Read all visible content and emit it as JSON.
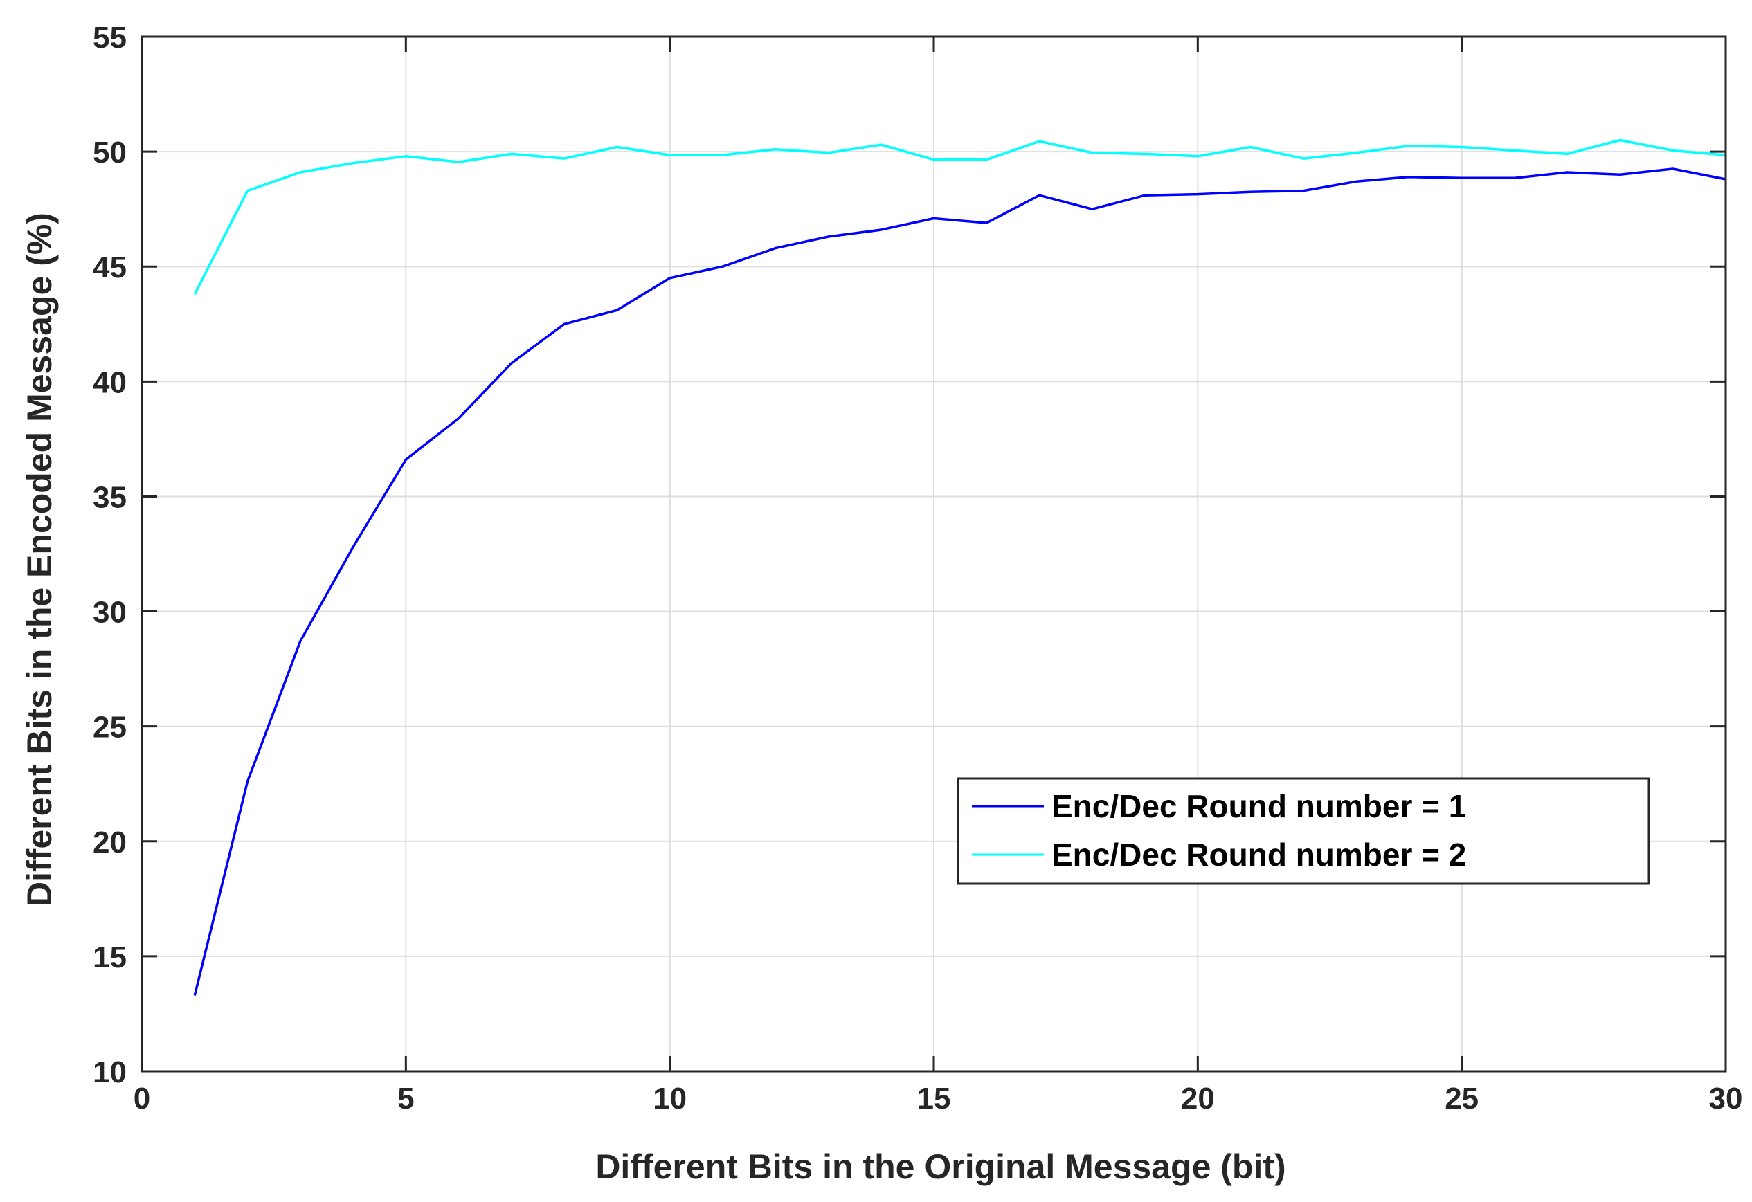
{
  "chart_data": {
    "type": "line",
    "xlabel": "Different Bits in the Original Message (bit)",
    "ylabel": "Different Bits in the Encoded Message (%)",
    "xlim": [
      0,
      30
    ],
    "ylim": [
      10,
      55
    ],
    "xticks": [
      0,
      5,
      10,
      15,
      20,
      25,
      30
    ],
    "yticks": [
      10,
      15,
      20,
      25,
      30,
      35,
      40,
      45,
      50,
      55
    ],
    "grid": true,
    "legend_position": "lower-right",
    "x": [
      1,
      2,
      3,
      4,
      5,
      6,
      7,
      8,
      9,
      10,
      11,
      12,
      13,
      14,
      15,
      16,
      17,
      18,
      19,
      20,
      21,
      22,
      23,
      24,
      25,
      26,
      27,
      28,
      29,
      30
    ],
    "series": [
      {
        "name": "Enc/Dec Round number = 1",
        "color": "#0000ff",
        "values": [
          13.3,
          22.6,
          28.7,
          32.8,
          36.6,
          38.4,
          40.8,
          42.5,
          43.1,
          44.5,
          45.0,
          45.8,
          46.3,
          46.6,
          47.1,
          46.9,
          48.1,
          47.5,
          48.1,
          48.15,
          48.25,
          48.3,
          48.7,
          48.9,
          48.85,
          48.85,
          49.1,
          49.0,
          49.25,
          48.8
        ]
      },
      {
        "name": "Enc/Dec Round number = 2",
        "color": "#00ffff",
        "values": [
          43.8,
          48.3,
          49.1,
          49.5,
          49.8,
          49.55,
          49.9,
          49.7,
          50.2,
          49.85,
          49.85,
          50.1,
          49.95,
          50.3,
          49.65,
          49.65,
          50.45,
          49.95,
          49.9,
          49.8,
          50.2,
          49.7,
          49.95,
          50.25,
          50.2,
          50.05,
          49.9,
          50.5,
          50.05,
          49.85
        ]
      }
    ]
  },
  "colors": {
    "grid": "#dddddd",
    "axis": "#262626"
  }
}
